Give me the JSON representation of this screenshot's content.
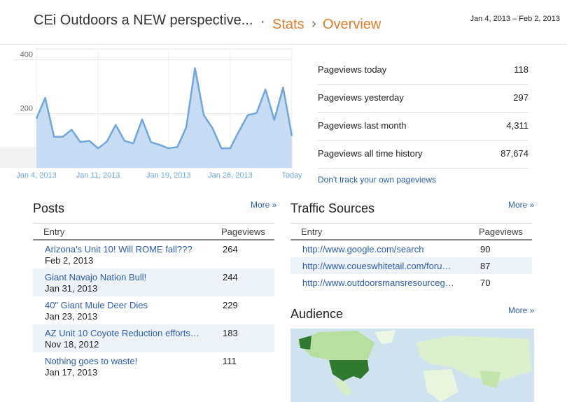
{
  "header": {
    "blog_title": "CEi Outdoors a NEW perspective...",
    "separator": "·",
    "crumb_stats": "Stats",
    "crumb_arrow": "›",
    "crumb_current": "Overview",
    "date_range": "Jan 4, 2013 – Feb 2, 2013"
  },
  "chart_data": {
    "type": "area",
    "categories": [
      "Jan 4, 2013",
      null,
      null,
      null,
      null,
      null,
      null,
      "Jan 11, 2013",
      null,
      null,
      null,
      null,
      null,
      null,
      null,
      "Jan 19, 2013",
      null,
      null,
      null,
      null,
      null,
      null,
      "Jan 26, 2013",
      null,
      null,
      null,
      null,
      null,
      null,
      "Today"
    ],
    "values": [
      182,
      259,
      115,
      115,
      141,
      95,
      100,
      72,
      97,
      159,
      100,
      90,
      179,
      95,
      85,
      72,
      77,
      149,
      369,
      195,
      146,
      72,
      72,
      136,
      195,
      203,
      290,
      177,
      297,
      118
    ],
    "color": "#6ea6dd",
    "area_color": "#c8dcf4",
    "ylim": [
      0,
      440
    ],
    "yticks": [
      200,
      400
    ],
    "grid": true
  },
  "pageviews": {
    "rows": [
      {
        "label": "Pageviews today",
        "value": 118
      },
      {
        "label": "Pageviews yesterday",
        "value": 297
      },
      {
        "label": "Pageviews last month",
        "value": "4,311"
      },
      {
        "label": "Pageviews all time history",
        "value": "87,674"
      }
    ],
    "link": "Don't track your own pageviews"
  },
  "posts": {
    "title": "Posts",
    "more": "More »",
    "columns": [
      "Entry",
      "Pageviews"
    ],
    "rows": [
      {
        "title": "Arizona's Unit 10! Will ROME fall???",
        "date": "Feb 2, 2013",
        "pageviews": 264
      },
      {
        "title": "Giant Navajo Nation Bull!",
        "date": "Jan 31, 2013",
        "pageviews": 244
      },
      {
        "title": "40\" Giant Mule Deer Dies",
        "date": "Jan 23, 2013",
        "pageviews": 229
      },
      {
        "title": "AZ Unit 10 Coyote Reduction efforts…",
        "date": "Nov 18, 2012",
        "pageviews": 183
      },
      {
        "title": "Nothing goes to waste!",
        "date": "Jan 17, 2013",
        "pageviews": 111
      }
    ]
  },
  "traffic_sources": {
    "title": "Traffic Sources",
    "more": "More »",
    "columns": [
      "Entry",
      "Pageviews"
    ],
    "rows": [
      {
        "url": "http://www.google.com/search",
        "pageviews": 90
      },
      {
        "url": "http://www.coueswhitetail.com/foru…",
        "pageviews": 87
      },
      {
        "url": "http://www.outdoorsmansresourceg…",
        "pageviews": 70
      }
    ]
  },
  "audience": {
    "title": "Audience",
    "more": "More »"
  }
}
